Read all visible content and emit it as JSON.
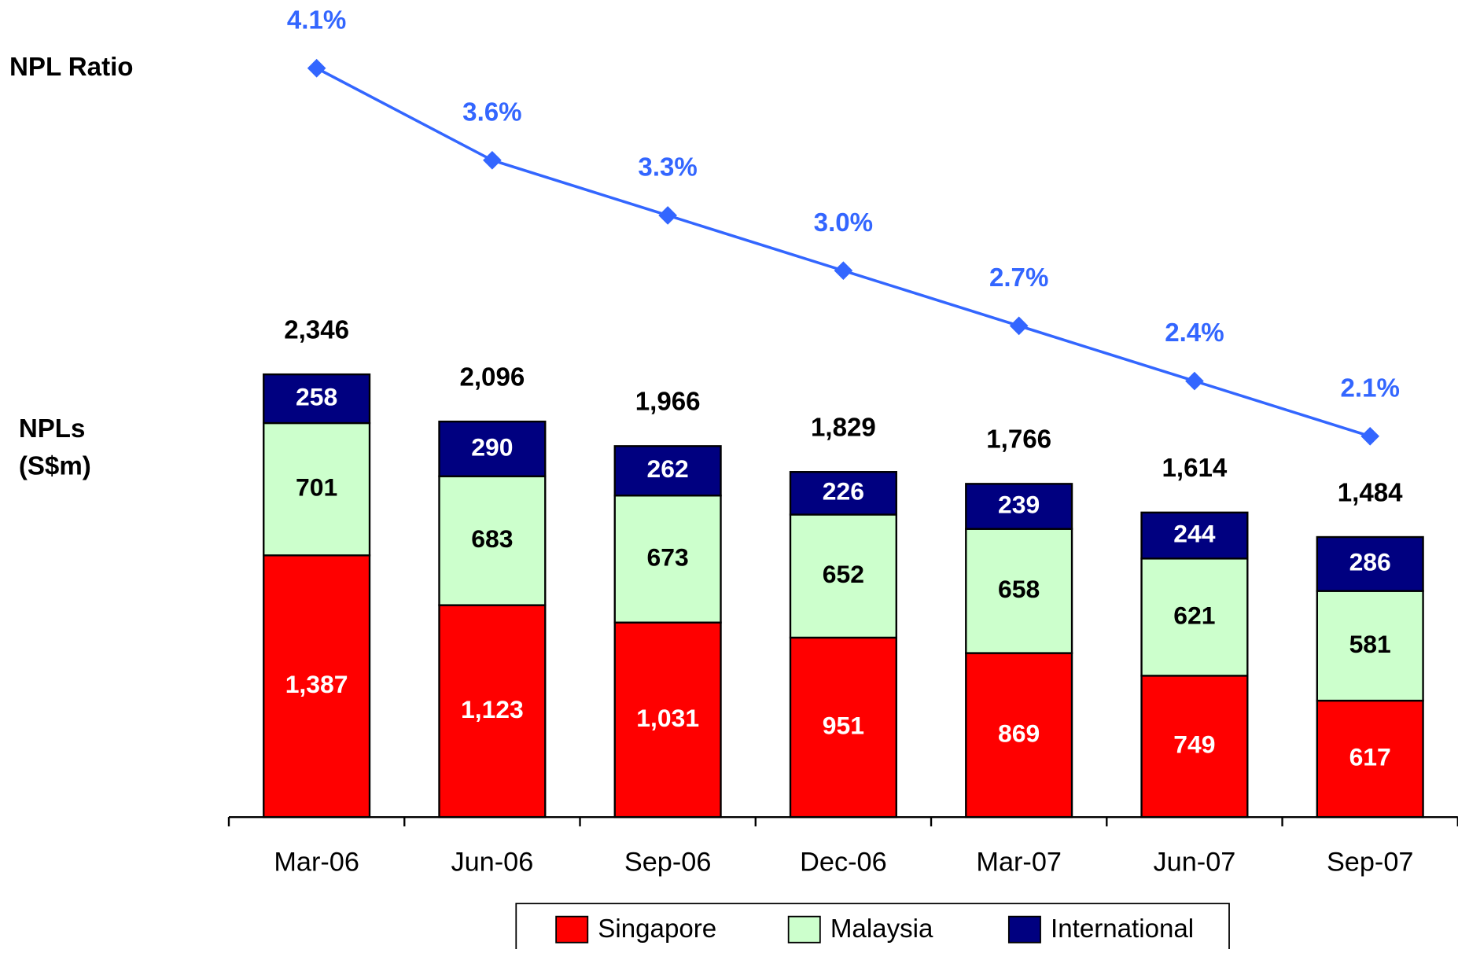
{
  "chart_data": {
    "type": "bar",
    "stacked": true,
    "line_label": "NPL Ratio",
    "y_label_lines": [
      "NPLs",
      "(S$m)"
    ],
    "categories": [
      "Mar-06",
      "Jun-06",
      "Sep-06",
      "Dec-06",
      "Mar-07",
      "Jun-07",
      "Sep-07"
    ],
    "series": [
      {
        "name": "Singapore",
        "color": "#ff0000",
        "label_color": "#ffffff",
        "values": [
          1387,
          1123,
          1031,
          951,
          869,
          749,
          617
        ],
        "value_labels": [
          "1,387",
          "1,123",
          "1,031",
          "951",
          "869",
          "749",
          "617"
        ]
      },
      {
        "name": "Malaysia",
        "color": "#ccffcc",
        "label_color": "#000000",
        "values": [
          701,
          683,
          673,
          652,
          658,
          621,
          581
        ],
        "value_labels": [
          "701",
          "683",
          "673",
          "652",
          "658",
          "621",
          "581"
        ]
      },
      {
        "name": "International",
        "color": "#000080",
        "label_color": "#ffffff",
        "values": [
          258,
          290,
          262,
          226,
          239,
          244,
          286
        ],
        "value_labels": [
          "258",
          "290",
          "262",
          "226",
          "239",
          "244",
          "286"
        ]
      },
      {
        "name": "NPL Ratio",
        "type": "line",
        "axis": "y2",
        "color": "#3366ff",
        "in_legend": false,
        "values": [
          4.1,
          3.6,
          3.3,
          3.0,
          2.7,
          2.4,
          2.1
        ],
        "value_labels": [
          "4.1%",
          "3.6%",
          "3.3%",
          "3.0%",
          "2.7%",
          "2.4%",
          "2.1%"
        ]
      }
    ],
    "totals": {
      "values": [
        2346,
        2096,
        1966,
        1829,
        1766,
        1614,
        1484
      ],
      "value_labels": [
        "2,346",
        "2,096",
        "1,966",
        "1,829",
        "1,766",
        "1,614",
        "1,484"
      ]
    },
    "ylim": [
      0,
      4000
    ],
    "y2lim": [
      0,
      4.4
    ]
  }
}
